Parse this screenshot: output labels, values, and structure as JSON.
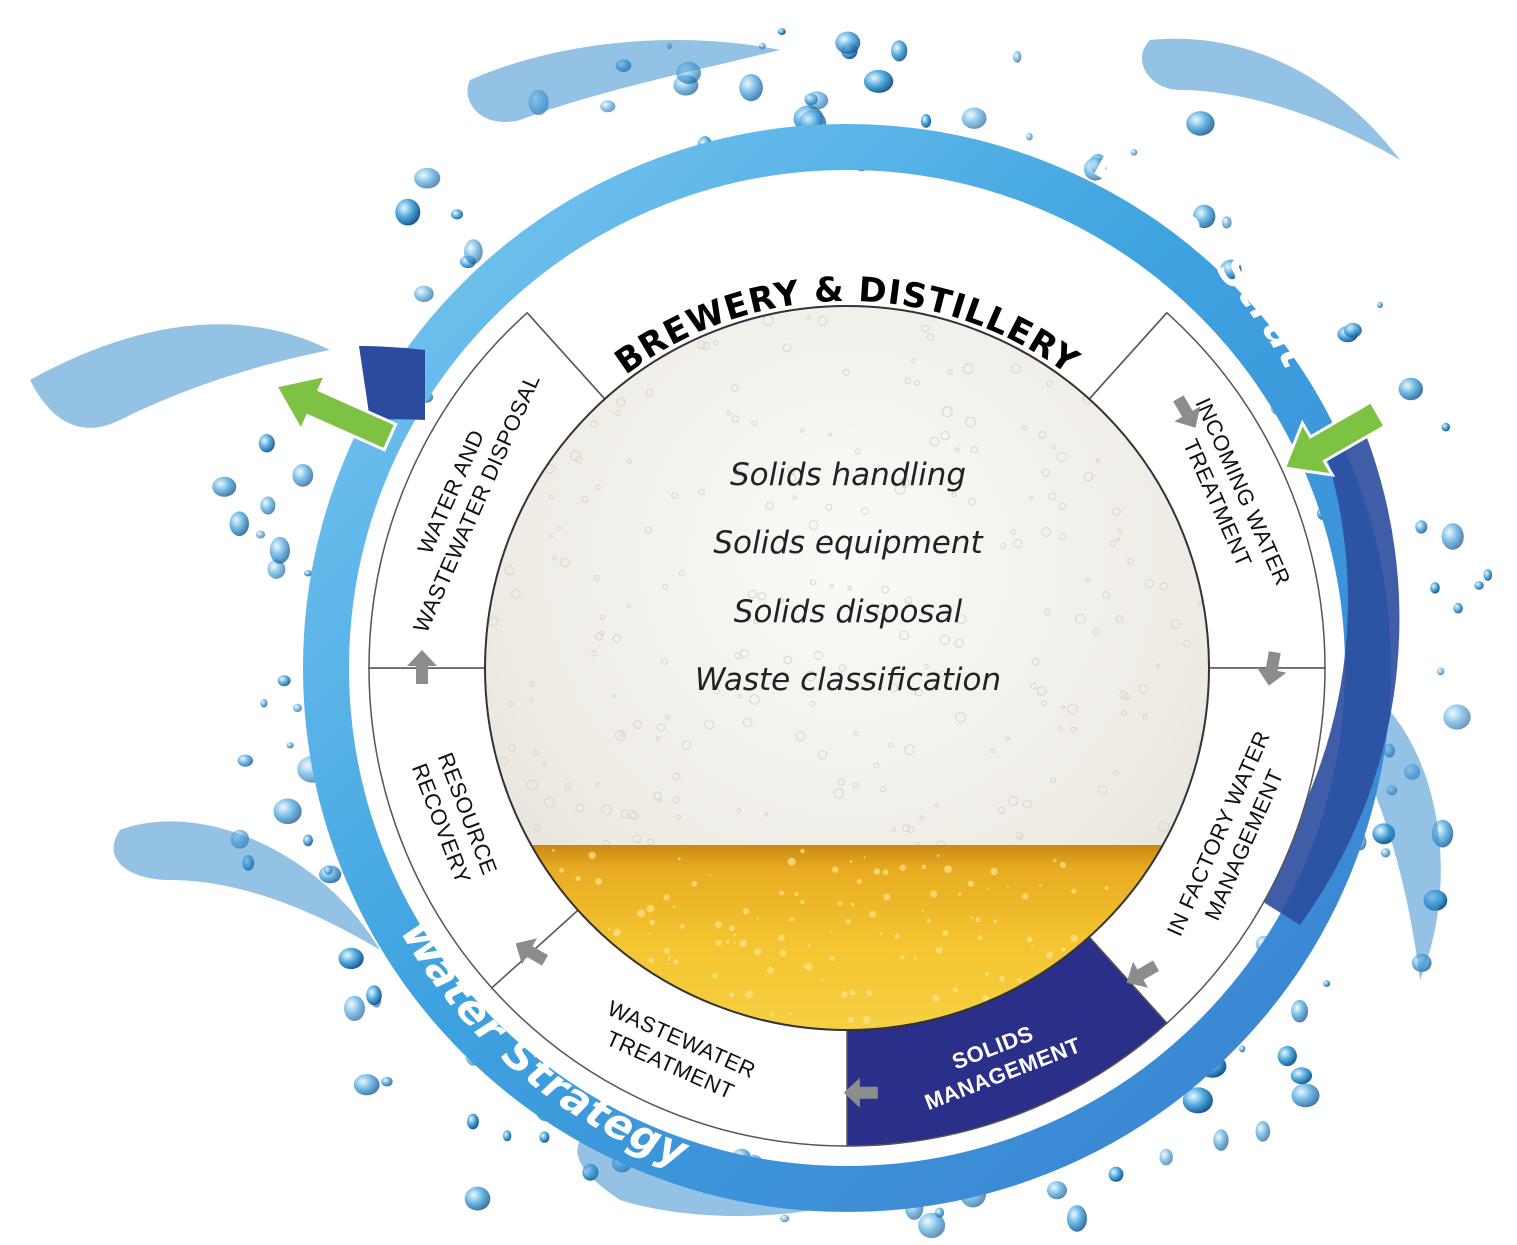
{
  "title": "BREWERY & DISTILLERY",
  "ring_label_top": "Water Strategy",
  "ring_label_bottom": "Water Strategy",
  "segments": [
    {
      "id": "incoming",
      "lines": [
        "INCOMING WATER",
        "TREATMENT"
      ]
    },
    {
      "id": "in-factory",
      "lines": [
        "IN FACTORY WATER",
        "MANAGEMENT"
      ]
    },
    {
      "id": "solids",
      "lines": [
        "SOLIDS",
        "MANAGEMENT"
      ],
      "highlighted": true
    },
    {
      "id": "wastewater",
      "lines": [
        "WASTEWATER",
        "TREATMENT"
      ]
    },
    {
      "id": "resource",
      "lines": [
        "RESOURCE",
        "RECOVERY"
      ]
    },
    {
      "id": "disposal",
      "lines": [
        "WATER AND",
        "WASTEWATER DISPOSAL"
      ]
    }
  ],
  "center_topics": [
    "Solids handling",
    "Solids equipment",
    "Solids disposal",
    "Waste classification"
  ],
  "colors": {
    "ring_light": "#5fb8ea",
    "ring_dark": "#2a4aa0",
    "highlight": "#2a2f8a",
    "arrow_green": "#7dc242",
    "arrow_grey": "#8c8c8c",
    "beer": "#f2c12e",
    "foam": "#f1efea"
  },
  "icons": [
    "water-splash-icon",
    "green-inflow-arrow-icon",
    "green-outflow-arrow-icon",
    "grey-flow-arrow-icon"
  ]
}
